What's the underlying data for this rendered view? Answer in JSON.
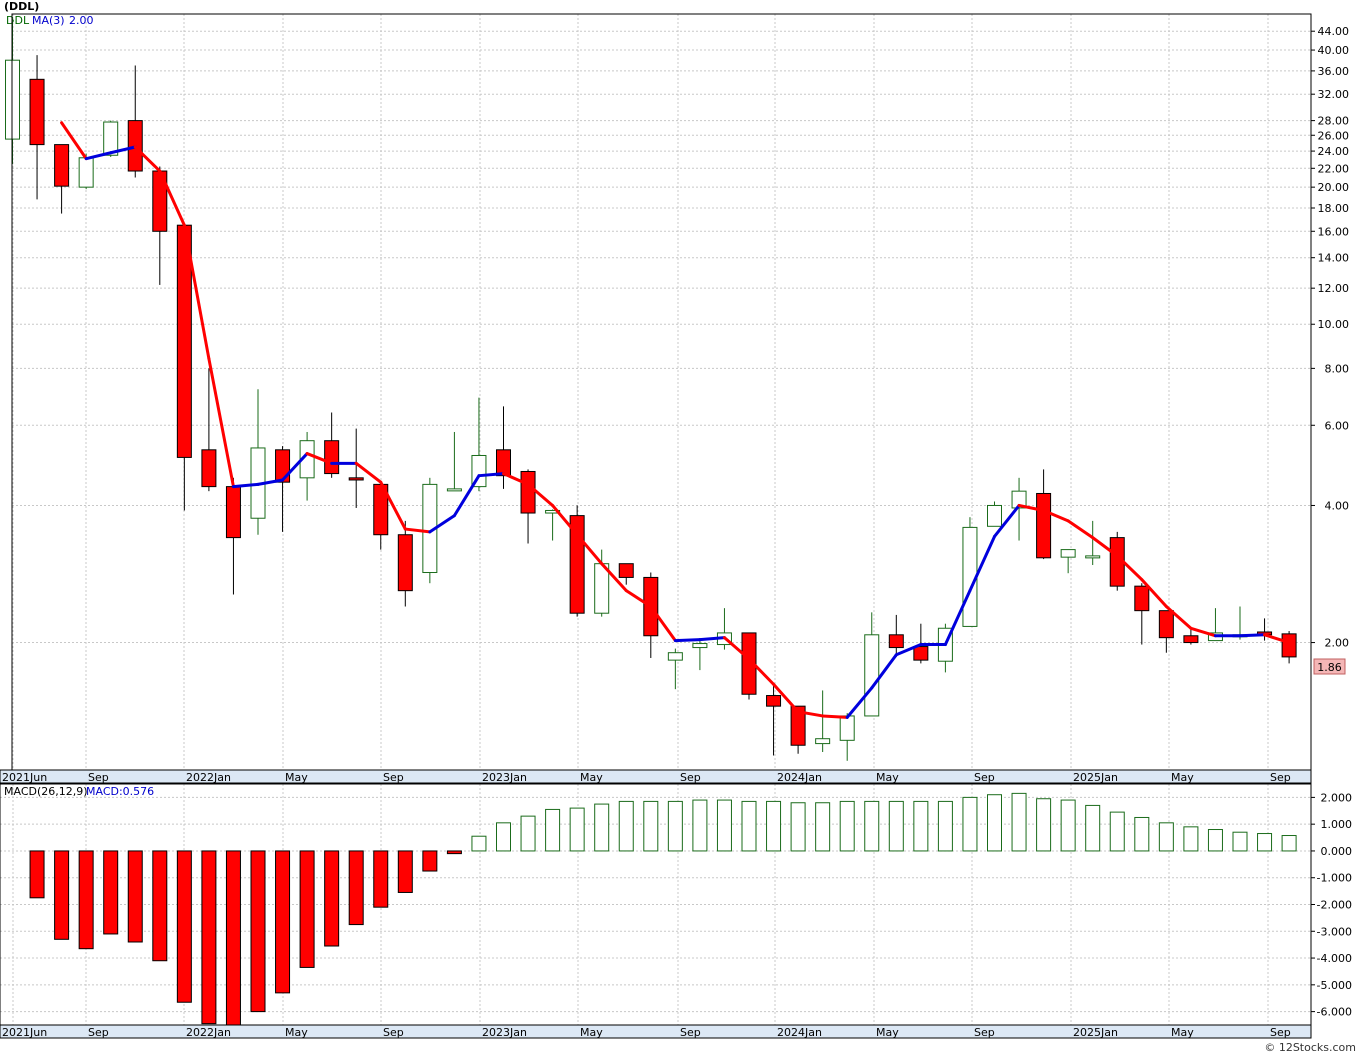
{
  "title": "(DDL)",
  "legend": {
    "symbol": "DDL",
    "ma_label": "MA(3)",
    "ma_value": "2.00"
  },
  "macd_label": {
    "name": "MACD(26,12,9)",
    "value": "MACD:0.576"
  },
  "watermark": "© 12Stocks.com",
  "colors": {
    "up": "#1a6b1a",
    "down": "#ff0000",
    "ma_up": "#0000dd",
    "ma_down": "#ff0000",
    "grid": "#c8c8c8",
    "last_price_bg": "#f4b6b6",
    "symbol": "#006600",
    "ma_text": "#0000cc"
  },
  "chart_data": [
    {
      "type": "candlestick",
      "scale": "log",
      "y_ticks": [
        "44.00",
        "40.00",
        "36.00",
        "32.00",
        "28.00",
        "26.00",
        "24.00",
        "22.00",
        "20.00",
        "18.00",
        "16.00",
        "14.00",
        "12.00",
        "10.00",
        "8.00",
        "6.00",
        "4.00",
        "2.00"
      ],
      "x_ticks": [
        "2021Jun",
        "Sep",
        "2022Jan",
        "May",
        "Sep",
        "2023Jan",
        "May",
        "Sep",
        "2024Jan",
        "May",
        "Sep",
        "2025Jan",
        "May",
        "Sep"
      ],
      "last_price": "1.86",
      "ylim": [
        1.05,
        48
      ],
      "candles": [
        {
          "o": 25.5,
          "h": 47,
          "l": 22.5,
          "c": 38
        },
        {
          "o": 34.5,
          "h": 39,
          "l": 18.8,
          "c": 24.8
        },
        {
          "o": 24.8,
          "h": 24.8,
          "l": 17.5,
          "c": 20.1
        },
        {
          "o": 20,
          "h": 23.7,
          "l": 19.8,
          "c": 23.2
        },
        {
          "o": 23.5,
          "h": 28,
          "l": 23.3,
          "c": 27.8
        },
        {
          "o": 28,
          "h": 37,
          "l": 21,
          "c": 21.7
        },
        {
          "o": 21.7,
          "h": 22.2,
          "l": 12.2,
          "c": 16
        },
        {
          "o": 16.5,
          "h": 16.5,
          "l": 3.9,
          "c": 5.1
        },
        {
          "o": 5.3,
          "h": 8,
          "l": 4.3,
          "c": 4.4
        },
        {
          "o": 4.4,
          "h": 4.6,
          "l": 2.55,
          "c": 3.4
        },
        {
          "o": 3.75,
          "h": 7.2,
          "l": 3.45,
          "c": 5.35
        },
        {
          "o": 5.3,
          "h": 5.4,
          "l": 3.5,
          "c": 4.5
        },
        {
          "o": 4.6,
          "h": 5.8,
          "l": 4.1,
          "c": 5.55
        },
        {
          "o": 5.55,
          "h": 6.4,
          "l": 4.6,
          "c": 4.7
        },
        {
          "o": 4.6,
          "h": 5.9,
          "l": 3.95,
          "c": 4.55
        },
        {
          "o": 4.45,
          "h": 4.5,
          "l": 3.2,
          "c": 3.45
        },
        {
          "o": 3.45,
          "h": 3.7,
          "l": 2.4,
          "c": 2.6
        },
        {
          "o": 2.85,
          "h": 4.6,
          "l": 2.7,
          "c": 4.45
        },
        {
          "o": 4.35,
          "h": 5.8,
          "l": 4.35,
          "c": 4.35
        },
        {
          "o": 4.4,
          "h": 6.9,
          "l": 4.3,
          "c": 5.15
        },
        {
          "o": 5.3,
          "h": 6.6,
          "l": 4.35,
          "c": 4.65
        },
        {
          "o": 4.75,
          "h": 4.8,
          "l": 3.3,
          "c": 3.85
        },
        {
          "o": 3.85,
          "h": 3.92,
          "l": 3.35,
          "c": 3.9
        },
        {
          "o": 3.8,
          "h": 4,
          "l": 2.28,
          "c": 2.32
        },
        {
          "o": 2.32,
          "h": 3.2,
          "l": 2.28,
          "c": 2.98
        },
        {
          "o": 2.98,
          "h": 2.98,
          "l": 2.68,
          "c": 2.78
        },
        {
          "o": 2.78,
          "h": 2.85,
          "l": 1.85,
          "c": 2.07
        },
        {
          "o": 1.83,
          "h": 1.94,
          "l": 1.58,
          "c": 1.9
        },
        {
          "o": 1.95,
          "h": 2.02,
          "l": 1.74,
          "c": 1.99
        },
        {
          "o": 1.98,
          "h": 2.38,
          "l": 1.93,
          "c": 2.1
        },
        {
          "o": 2.1,
          "h": 2.1,
          "l": 1.5,
          "c": 1.54
        },
        {
          "o": 1.53,
          "h": 1.62,
          "l": 1.13,
          "c": 1.45
        },
        {
          "o": 1.45,
          "h": 1.45,
          "l": 1.14,
          "c": 1.19
        },
        {
          "o": 1.2,
          "h": 1.57,
          "l": 1.15,
          "c": 1.23
        },
        {
          "o": 1.22,
          "h": 1.4,
          "l": 1.1,
          "c": 1.38
        },
        {
          "o": 1.38,
          "h": 2.33,
          "l": 1.38,
          "c": 2.08
        },
        {
          "o": 2.08,
          "h": 2.3,
          "l": 1.86,
          "c": 1.95
        },
        {
          "o": 1.96,
          "h": 2.2,
          "l": 1.8,
          "c": 1.83
        },
        {
          "o": 1.82,
          "h": 2.2,
          "l": 1.72,
          "c": 2.15
        },
        {
          "o": 2.17,
          "h": 3.77,
          "l": 2.17,
          "c": 3.58
        },
        {
          "o": 3.6,
          "h": 4.08,
          "l": 3.6,
          "c": 4.0
        },
        {
          "o": 3.95,
          "h": 4.6,
          "l": 3.35,
          "c": 4.3
        },
        {
          "o": 4.25,
          "h": 4.8,
          "l": 3.05,
          "c": 3.07
        },
        {
          "o": 3.08,
          "h": 3.2,
          "l": 2.84,
          "c": 3.2
        },
        {
          "o": 3.1,
          "h": 3.7,
          "l": 2.96,
          "c": 3.1
        },
        {
          "o": 3.4,
          "h": 3.5,
          "l": 2.6,
          "c": 2.66
        },
        {
          "o": 2.66,
          "h": 2.7,
          "l": 1.98,
          "c": 2.35
        },
        {
          "o": 2.35,
          "h": 2.35,
          "l": 1.9,
          "c": 2.05
        },
        {
          "o": 2.07,
          "h": 2.15,
          "l": 1.98,
          "c": 2.0
        },
        {
          "o": 2.02,
          "h": 2.38,
          "l": 2.02,
          "c": 2.1
        },
        {
          "o": 2.07,
          "h": 2.4,
          "l": 2.03,
          "c": 2.08
        },
        {
          "o": 2.11,
          "h": 2.26,
          "l": 2.02,
          "c": 2.08
        },
        {
          "o": 2.09,
          "h": 2.12,
          "l": 1.8,
          "c": 1.86
        }
      ],
      "ma": [
        null,
        null,
        27.7,
        23.1,
        23.8,
        24.5,
        21.7,
        16.5,
        8.4,
        4.4,
        4.45,
        4.55,
        5.2,
        4.95,
        4.95,
        4.5,
        3.55,
        3.5,
        3.8,
        4.65,
        4.7,
        4.45,
        4.0,
        3.45,
        2.98,
        2.6,
        2.4,
        2.02,
        2.03,
        2.05,
        1.84,
        1.62,
        1.41,
        1.38,
        1.37,
        1.59,
        1.88,
        1.98,
        1.98,
        2.6,
        3.42,
        4.0,
        3.9,
        3.7,
        3.4,
        3.1,
        2.75,
        2.4,
        2.15,
        2.07,
        2.07,
        2.08,
        2.0
      ]
    },
    {
      "type": "bar",
      "name": "MACD(26,12,9)",
      "y_ticks": [
        "2.000",
        "1.000",
        "0.000",
        "-1.000",
        "-2.000",
        "-3.000",
        "-4.000",
        "-5.000",
        "-6.000"
      ],
      "x_ticks": [
        "2021Jun",
        "Sep",
        "2022Jan",
        "May",
        "Sep",
        "2023Jan",
        "May",
        "Sep",
        "2024Jan",
        "May",
        "Sep",
        "2025Jan",
        "May",
        "Sep"
      ],
      "ylim": [
        -6.5,
        2.5
      ],
      "values": [
        0,
        -1.75,
        -3.3,
        -3.65,
        -3.1,
        -3.4,
        -4.1,
        -5.65,
        -6.45,
        -6.6,
        -6.0,
        -5.3,
        -4.35,
        -3.55,
        -2.75,
        -2.1,
        -1.55,
        -0.75,
        -0.1,
        0.55,
        1.05,
        1.3,
        1.55,
        1.6,
        1.75,
        1.85,
        1.85,
        1.85,
        1.9,
        1.9,
        1.85,
        1.85,
        1.8,
        1.8,
        1.85,
        1.85,
        1.85,
        1.85,
        1.85,
        2.0,
        2.1,
        2.15,
        1.95,
        1.9,
        1.7,
        1.45,
        1.25,
        1.05,
        0.9,
        0.8,
        0.7,
        0.65,
        0.576
      ]
    }
  ]
}
